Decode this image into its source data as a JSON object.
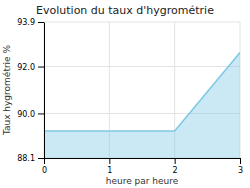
{
  "chart_data": {
    "type": "area",
    "title": "Evolution du taux d'hygrométrie",
    "xlabel": "heure par heure",
    "ylabel": "Taux hygrométrie %",
    "x": [
      0,
      2,
      3
    ],
    "values": [
      89.25,
      89.25,
      92.6
    ],
    "color": "#7ec8e3",
    "xlim": [
      0,
      3
    ],
    "ylim": [
      88.1,
      93.9
    ],
    "xticks": [
      0,
      1,
      2,
      3
    ],
    "yticks": [
      88.1,
      {
        "value": 90.0,
        "label": "90.0"
      },
      {
        "value": 92.0,
        "label": "92.0"
      },
      93.9
    ],
    "grid": true
  }
}
